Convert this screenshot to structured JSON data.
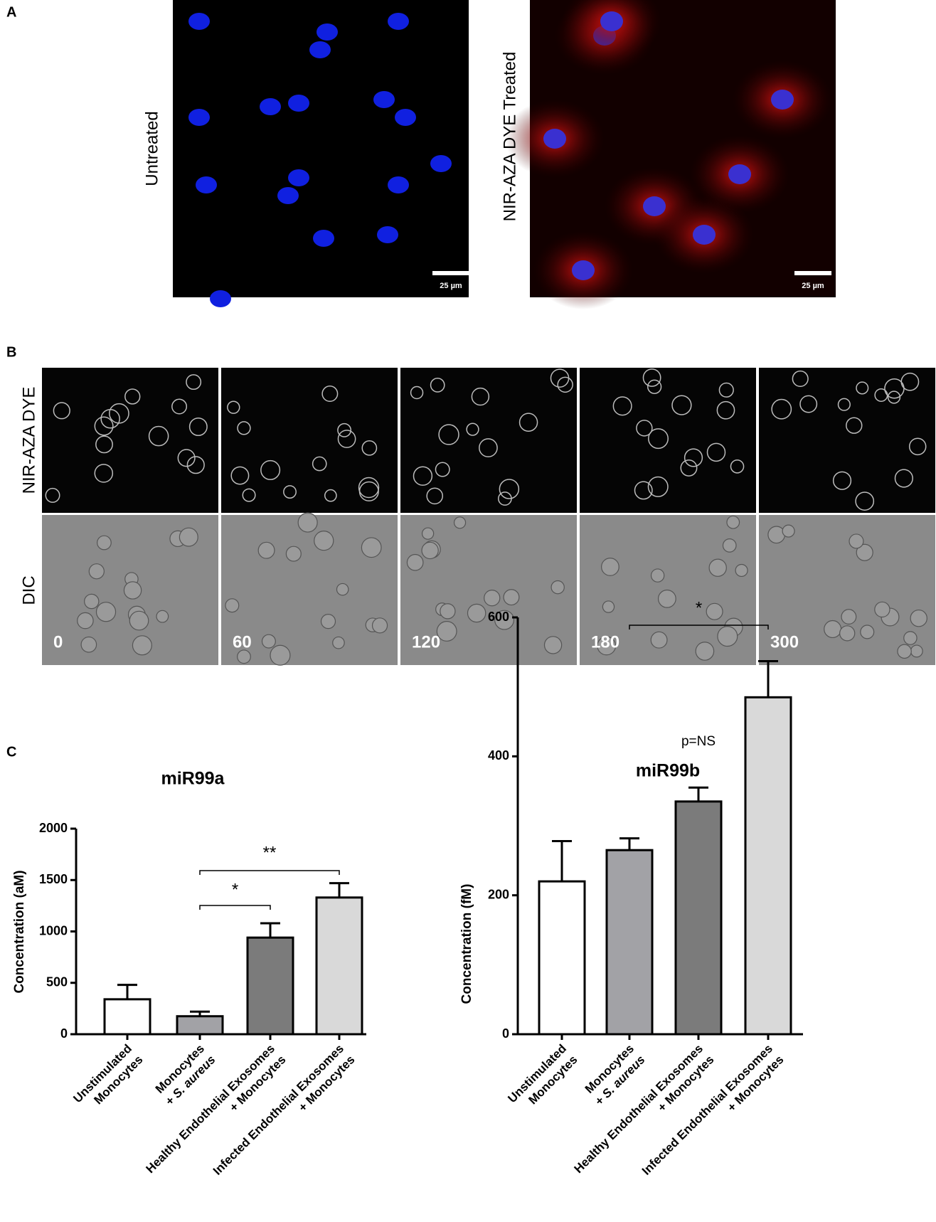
{
  "panel_labels": [
    "A",
    "B",
    "C"
  ],
  "panel_a": {
    "labels": [
      "Untreated",
      "NIR-AZA DYE Treated"
    ],
    "scale_bars": [
      "25 µm",
      "25 µm"
    ]
  },
  "panel_b": {
    "rows": [
      "NIR-AZA DYE",
      "DIC"
    ],
    "times": [
      0,
      60,
      120,
      180,
      300
    ]
  },
  "chart_data": [
    {
      "type": "bar",
      "title": "miR99a",
      "ylabel": "Concentration  (aM)",
      "categories": [
        [
          "Unstimulated",
          "Monocytes"
        ],
        [
          "Monocytes",
          "+ S. aureus"
        ],
        [
          "Healthy Endothelial Exosomes",
          "+ Monocytes"
        ],
        [
          "Infected Endothelial Exosomes",
          "+ Monocytes"
        ]
      ],
      "values": [
        340,
        175,
        940,
        1330
      ],
      "errors": [
        140,
        45,
        140,
        140
      ],
      "colors": [
        "#ffffff",
        "#a2a2a6",
        "#7b7b7b",
        "#d9d9d9"
      ],
      "ylim": [
        0,
        2000
      ],
      "yticks": [
        0,
        500,
        1000,
        1500,
        2000
      ],
      "annotations": [
        "**",
        "*"
      ]
    },
    {
      "type": "bar",
      "title": "miR99b",
      "ylabel": "Concentration  (fM)",
      "categories": [
        [
          "Unstimulated",
          "Monocytes"
        ],
        [
          "Monocytes",
          "+ S. aureus"
        ],
        [
          "Healthy Endothelial Exosomes",
          "+ Monocytes"
        ],
        [
          "Infected Endothelial Exosomes",
          "+ Monocytes"
        ]
      ],
      "values": [
        220,
        265,
        335,
        485
      ],
      "errors": [
        58,
        17,
        20,
        52
      ],
      "colors": [
        "#ffffff",
        "#a2a2a6",
        "#7b7b7b",
        "#d9d9d9"
      ],
      "ylim": [
        0,
        600
      ],
      "yticks": [
        0,
        200,
        400,
        600
      ],
      "annotations": [
        "*",
        "p=NS"
      ]
    }
  ]
}
